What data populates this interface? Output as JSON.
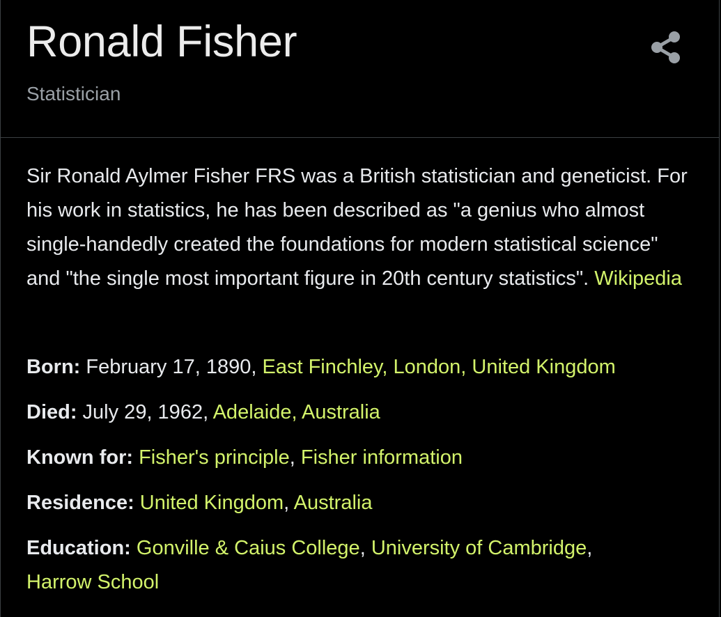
{
  "header": {
    "title": "Ronald Fisher",
    "subtitle": "Statistician",
    "share_icon": "share-icon"
  },
  "description": {
    "text": "Sir Ronald Aylmer Fisher FRS was a British statistician and geneticist. For his work in statistics, he has been described as \"a genius who almost single-handedly created the foundations for modern statistical science\" and \"the single most important figure in 20th century statistics\". ",
    "source_link": "Wikipedia"
  },
  "facts": {
    "born": {
      "label": "Born:",
      "text": " February 17, 1890, ",
      "links": [
        "East Finchley, London, United Kingdom"
      ]
    },
    "died": {
      "label": "Died:",
      "text": " July 29, 1962, ",
      "links": [
        "Adelaide, Australia"
      ]
    },
    "known_for": {
      "label": "Known for:",
      "links": [
        "Fisher's principle",
        "Fisher information"
      ],
      "separator": ", "
    },
    "residence": {
      "label": "Residence:",
      "links": [
        "United Kingdom",
        "Australia"
      ],
      "separator": ", "
    },
    "education": {
      "label": "Education:",
      "links": [
        "Gonville & Caius College",
        "University of Cambridge",
        "Harrow School"
      ],
      "separator": ", ",
      "trailing": ","
    }
  },
  "colors": {
    "background": "#000000",
    "text": "#e8eaed",
    "muted": "#9aa0a6",
    "link": "#d3f36b",
    "divider": "#3c4043"
  }
}
